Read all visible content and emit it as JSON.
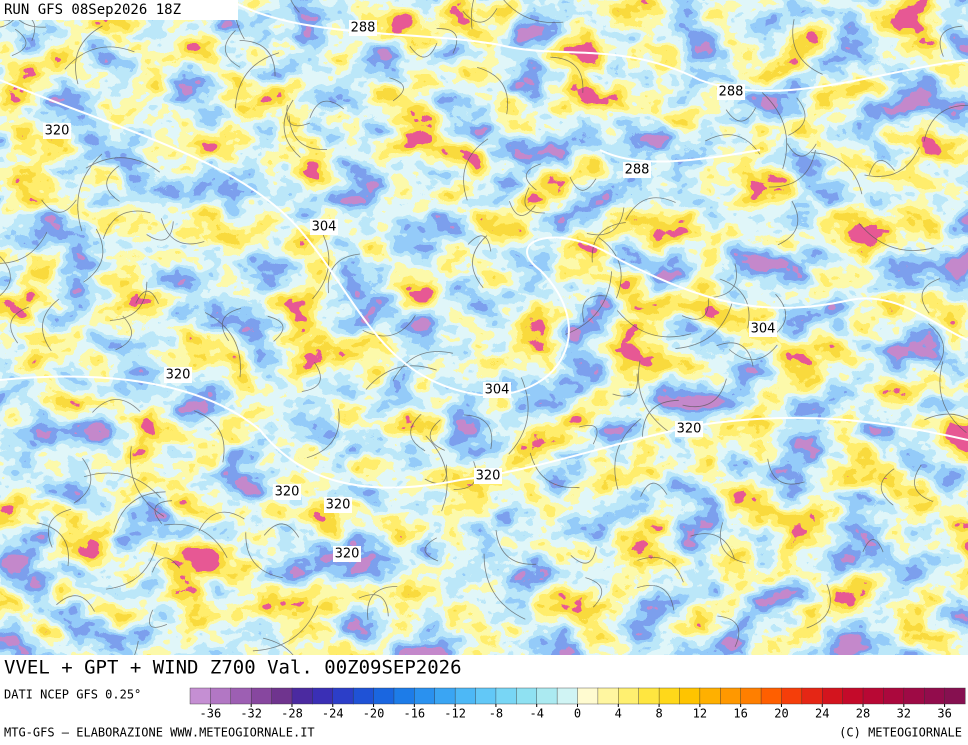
{
  "header": {
    "run": "RUN GFS 08Sep2026 18Z"
  },
  "map": {
    "contour_labels": [
      288,
      288,
      288,
      320,
      304,
      304,
      320,
      304,
      320,
      320,
      320,
      320,
      320
    ]
  },
  "footer": {
    "title": "VVEL + GPT + WIND Z700 Val. 00Z09SEP2026",
    "source": "DATI NCEP GFS 0.25°",
    "credit": "MTG-GFS — ELABORAZIONE WWW.METEOGIORNALE.IT",
    "copyright": "(C) METEOGIORNALE"
  },
  "colorbar": {
    "ticks": [
      -36,
      -32,
      -28,
      -24,
      -20,
      -16,
      -12,
      -8,
      -4,
      0,
      4,
      8,
      12,
      16,
      20,
      24,
      28,
      32,
      36
    ],
    "colors": [
      "#c58fd3",
      "#b277c4",
      "#9d5fb3",
      "#87479f",
      "#6f348e",
      "#4b2aa0",
      "#3a2fb5",
      "#2c3ec8",
      "#1f52d6",
      "#1a66e0",
      "#1d7ce8",
      "#2a91ef",
      "#3aa5f3",
      "#4db8f6",
      "#62c8f7",
      "#78d6f5",
      "#8fe1f2",
      "#abeaf1",
      "#d0f4f4",
      "#fffbd0",
      "#fff6a0",
      "#fff070",
      "#ffe640",
      "#ffd81a",
      "#ffc400",
      "#ffb000",
      "#ff9800",
      "#ff7f00",
      "#ff5f00",
      "#f53e0a",
      "#e52615",
      "#d3141e",
      "#c40a2a",
      "#b80834",
      "#ab083d",
      "#9e0a45",
      "#920c4c",
      "#861050"
    ]
  }
}
